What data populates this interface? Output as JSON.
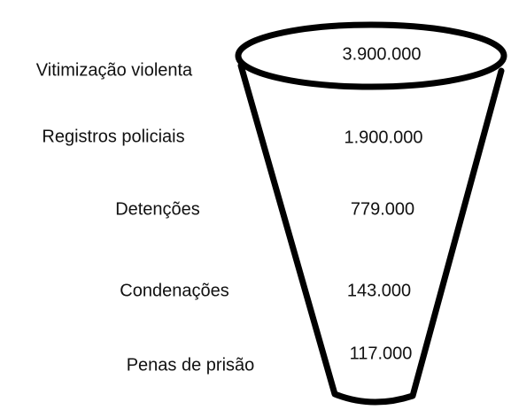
{
  "stages": [
    {
      "label": "Vitimização violenta",
      "value": "3.900.000"
    },
    {
      "label": "Registros policiais",
      "value": "1.900.000"
    },
    {
      "label": "Detenções",
      "value": "779.000"
    },
    {
      "label": "Condenações",
      "value": "143.000"
    },
    {
      "label": "Penas de prisão",
      "value": "117.000"
    }
  ]
}
